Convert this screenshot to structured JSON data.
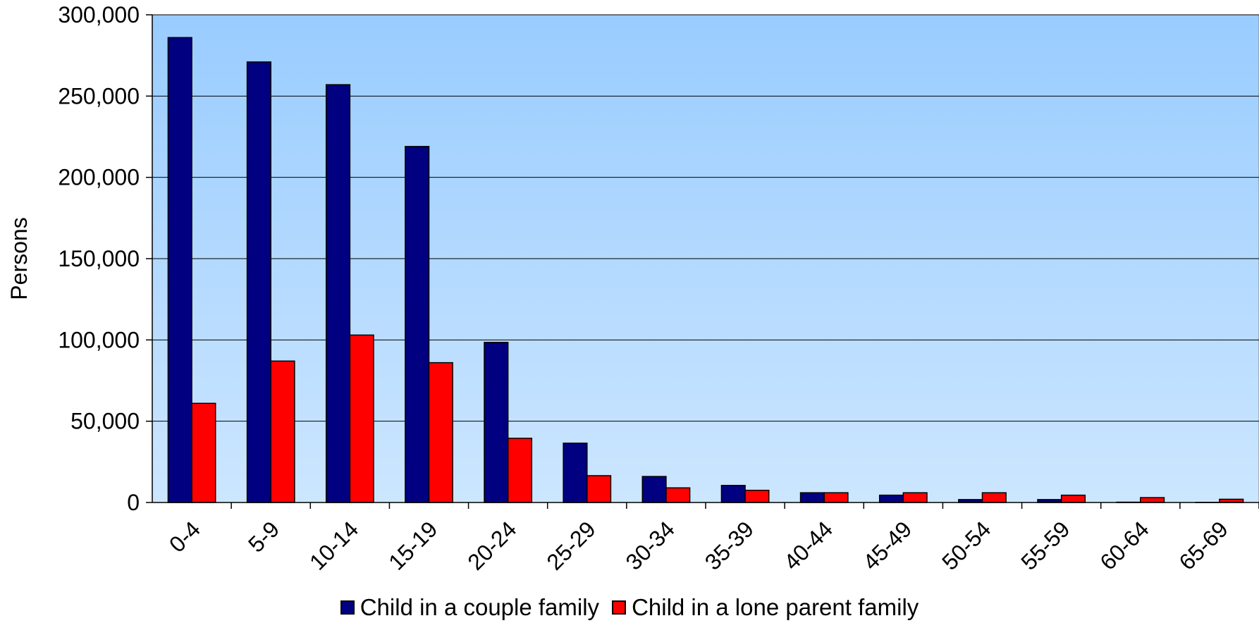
{
  "chart_data": {
    "type": "bar",
    "title": "",
    "xlabel": "",
    "ylabel": "Persons",
    "ylim": [
      0,
      300000
    ],
    "y_ticks": [
      "0",
      "50,000",
      "100,000",
      "150,000",
      "200,000",
      "250,000",
      "300,000"
    ],
    "grid": true,
    "legend_position": "bottom",
    "categories": [
      "0-4",
      "5-9",
      "10-14",
      "15-19",
      "20-24",
      "25-29",
      "30-34",
      "35-39",
      "40-44",
      "45-49",
      "50-54",
      "55-59",
      "60-64",
      "65-69"
    ],
    "series": [
      {
        "name": "Child in a couple family",
        "color": "#000080",
        "values": [
          286000,
          271000,
          257000,
          219000,
          98500,
          36500,
          16000,
          10500,
          6000,
          4500,
          1800,
          1800,
          200,
          100
        ]
      },
      {
        "name": "Child in a lone parent family",
        "color": "#ff0000",
        "values": [
          61000,
          87000,
          103000,
          86000,
          39500,
          16500,
          9000,
          7500,
          6000,
          6000,
          6000,
          4500,
          3000,
          2000
        ]
      }
    ],
    "background_gradient": [
      "#99ccff",
      "#cce6ff"
    ]
  }
}
